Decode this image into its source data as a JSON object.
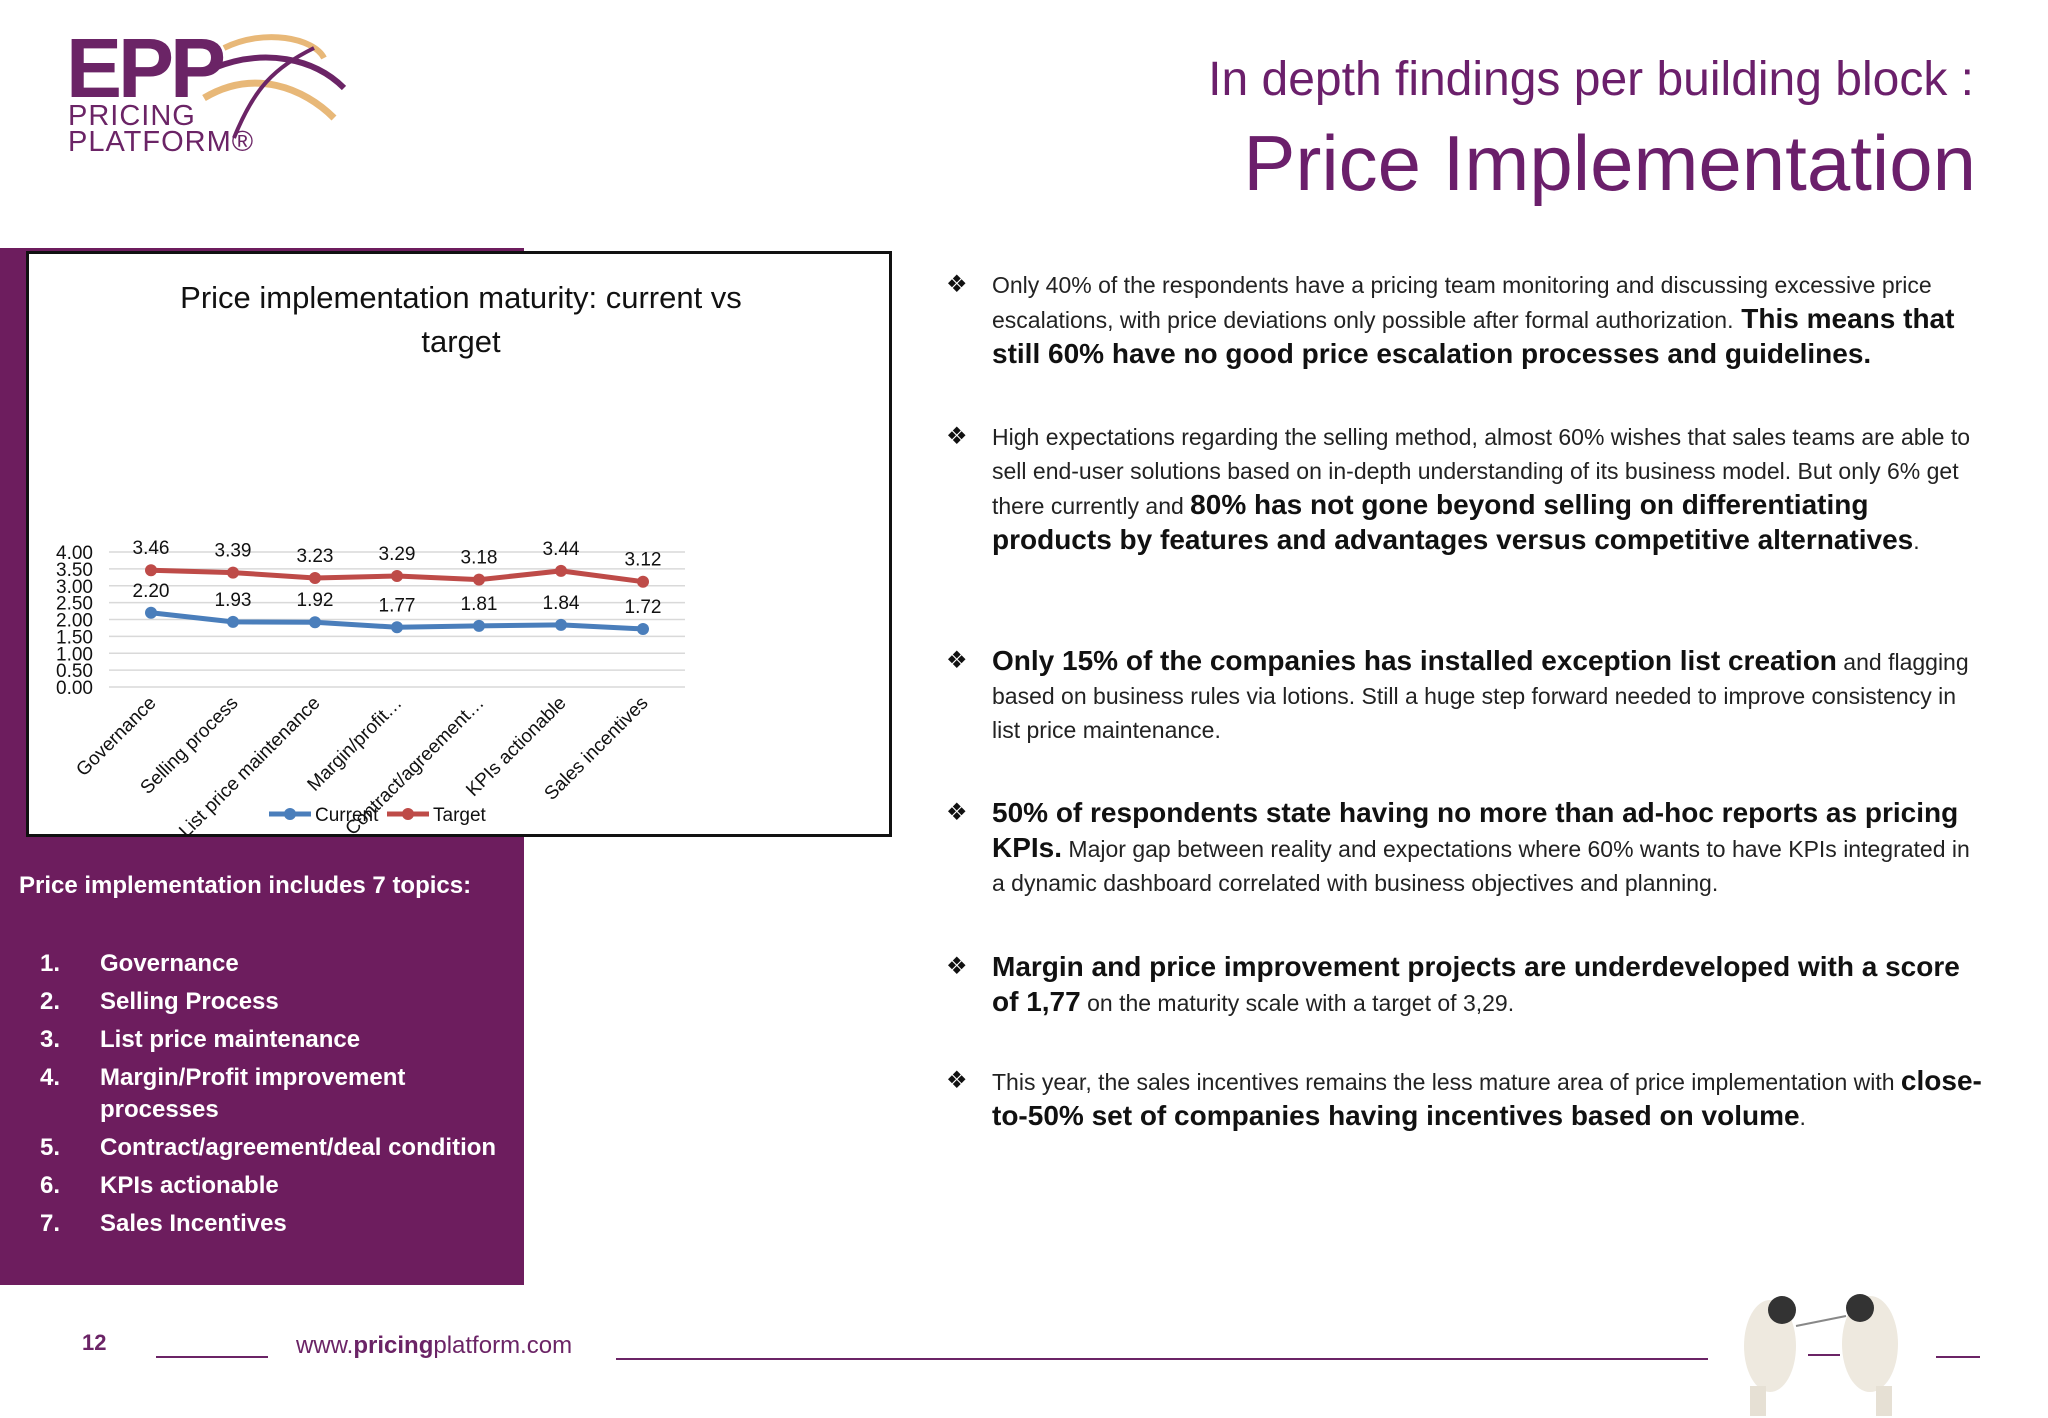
{
  "header": {
    "logo_big": "EPP",
    "logo_line1": "PRICING",
    "logo_line2": "PLATFORM®",
    "subtitle": "In depth findings per building block :",
    "title": "Price Implementation"
  },
  "chart_data": {
    "type": "line",
    "title_line1": "Price implementation maturity: current vs",
    "title_line2": "target",
    "categories": [
      "Governance",
      "Selling process",
      "List price maintenance",
      "Margin/profit…",
      "Contract/agreement…",
      "KPIs actionable",
      "Sales incentives"
    ],
    "series": [
      {
        "name": "Current",
        "values": [
          2.2,
          1.93,
          1.92,
          1.77,
          1.81,
          1.84,
          1.72
        ],
        "color": "#4a7ebb"
      },
      {
        "name": "Target",
        "values": [
          3.46,
          3.39,
          3.23,
          3.29,
          3.18,
          3.44,
          3.12
        ],
        "color": "#be4b48"
      }
    ],
    "value_labels": {
      "Current": [
        "2.20",
        "1.93",
        "1.92",
        "1.77",
        "1.81",
        "1.84",
        "1.72"
      ],
      "Target": [
        "3.46",
        "3.39",
        "3.23",
        "3.29",
        "3.18",
        "3.44",
        "3.12"
      ]
    },
    "yticks": [
      "0.00",
      "0.50",
      "1.00",
      "1.50",
      "2.00",
      "2.50",
      "3.00",
      "3.50",
      "4.00"
    ],
    "ylim": [
      0,
      4
    ],
    "grid": true,
    "legend": "bottom"
  },
  "sidebar": {
    "title": "Price implementation includes 7 topics:",
    "items": [
      {
        "num": "1.",
        "text": "Governance"
      },
      {
        "num": "2.",
        "text": "Selling Process"
      },
      {
        "num": "3.",
        "text": "List price maintenance"
      },
      {
        "num": "4.",
        "text": "Margin/Profit improvement processes"
      },
      {
        "num": "5.",
        "text": "Contract/agreement/deal condition"
      },
      {
        "num": "6.",
        "text": "KPIs actionable"
      },
      {
        "num": "7.",
        "text": "Sales Incentives"
      }
    ]
  },
  "bullets": [
    {
      "a": "Only 40% of the respondents have a pricing team monitoring and discussing excessive price escalations, with price deviations only possible after formal authorization.",
      "b": " This means that still 60% have no good price escalation processes and guidelines.",
      "c": ""
    },
    {
      "a": "High expectations regarding the selling method, almost 60% wishes that sales teams are able to sell end-user solutions based on in-depth understanding of its business model. But only 6% get there currently and ",
      "b": "80% has not gone beyond selling on differentiating products by features and advantages versus competitive alternatives",
      "c": "."
    },
    {
      "a": "",
      "b": "Only 15% of the companies has installed exception list creation",
      "c": " and flagging based on business rules via lotions. Still a huge step forward needed to improve consistency in list price maintenance."
    },
    {
      "a": "",
      "b": "50% of respondents state having no more than ad-hoc reports as pricing KPIs.",
      "c": " Major gap between reality and expectations where 60% wants to have KPIs integrated in a dynamic dashboard correlated with business objectives and planning."
    },
    {
      "a": "",
      "b": "Margin and price improvement projects are underdeveloped with a score of 1,77",
      "c": " on the maturity scale with a target of 3,29."
    },
    {
      "a": "This year, the sales incentives remains the less mature area of price implementation with ",
      "b": "close-to-50% set of companies having incentives based on volume",
      "c": "."
    }
  ],
  "bullet_mark": "❖",
  "footer": {
    "page_number": "12",
    "url_pre": "www.",
    "url_bold": "pricing",
    "url_post": "platform.com"
  },
  "colors": {
    "brand": "#6b2466",
    "panel": "#6d1d5e",
    "current": "#4a7ebb",
    "target": "#be4b48"
  }
}
